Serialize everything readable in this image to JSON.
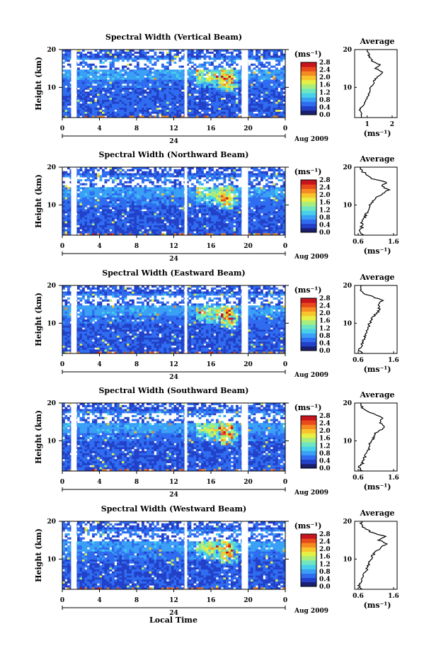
{
  "figure": {
    "xlabel": "Local Time",
    "date_label": "Aug 2009",
    "day_label": "24",
    "colorbar_unit": "(ms⁻¹)",
    "colorbar_ticks": [
      "2.8",
      "2.4",
      "2.0",
      "1.6",
      "1.2",
      "0.8",
      "0.4",
      "0.0"
    ],
    "avg_title": "Average",
    "avg_xlabel": "(ms⁻¹)",
    "ylabel": "Height (km)",
    "time_ticks": [
      "0",
      "4",
      "8",
      "12",
      "16",
      "20",
      "0"
    ],
    "height_ticks": [
      "20",
      "10"
    ],
    "colormap": [
      "#1a1f6e",
      "#2240c8",
      "#2f6cf0",
      "#3aa0f5",
      "#48d0ea",
      "#70e6c0",
      "#a8ee7e",
      "#e6ef45",
      "#f8c42c",
      "#f58a22",
      "#e84a1c",
      "#c8141c"
    ]
  },
  "chart_data": [
    {
      "type": "heatmap",
      "title": "Spectral Width (Vertical Beam)",
      "xlim": [
        0,
        24
      ],
      "ylim": [
        2,
        20
      ],
      "clim": [
        0.0,
        2.8
      ],
      "avg_ticks": [
        "1",
        "2"
      ],
      "avg_xlim": [
        0.5,
        2.2
      ],
      "avg_profile": {
        "height": [
          2,
          3,
          4,
          5,
          6,
          7,
          8,
          9,
          10,
          11,
          12,
          13,
          14,
          15,
          16,
          17,
          18,
          19,
          20
        ],
        "value": [
          0.75,
          0.8,
          0.7,
          0.8,
          0.9,
          1.0,
          1.05,
          1.1,
          1.15,
          1.25,
          1.3,
          1.45,
          1.6,
          1.35,
          1.5,
          1.2,
          1.1,
          1.05,
          1.0
        ]
      }
    },
    {
      "type": "heatmap",
      "title": "Spectral Width (Northward Beam)",
      "xlim": [
        0,
        24
      ],
      "ylim": [
        2,
        20
      ],
      "clim": [
        0.0,
        2.8
      ],
      "avg_ticks": [
        "0.6",
        "1.6"
      ],
      "avg_xlim": [
        0.5,
        1.7
      ],
      "avg_profile": {
        "height": [
          2,
          3,
          4,
          5,
          6,
          7,
          8,
          9,
          10,
          11,
          12,
          13,
          14,
          15,
          16,
          17,
          18,
          19,
          20
        ],
        "value": [
          0.75,
          0.65,
          0.7,
          0.7,
          0.75,
          0.8,
          0.85,
          0.9,
          0.95,
          1.0,
          1.1,
          1.3,
          1.45,
          1.25,
          1.4,
          1.0,
          0.85,
          0.7,
          0.65
        ]
      }
    },
    {
      "type": "heatmap",
      "title": "Spectral Width (Eastward Beam)",
      "xlim": [
        0,
        24
      ],
      "ylim": [
        2,
        20
      ],
      "clim": [
        0.0,
        2.8
      ],
      "avg_ticks": [
        "0.6",
        "1.6"
      ],
      "avg_xlim": [
        0.5,
        1.7
      ],
      "avg_profile": {
        "height": [
          2,
          3,
          4,
          5,
          6,
          7,
          8,
          9,
          10,
          11,
          12,
          13,
          14,
          15,
          16,
          17,
          18,
          19,
          20
        ],
        "value": [
          0.7,
          0.6,
          0.7,
          0.72,
          0.78,
          0.82,
          0.85,
          0.88,
          0.92,
          0.98,
          1.05,
          1.15,
          1.2,
          1.15,
          1.3,
          1.0,
          0.75,
          0.65,
          0.7
        ]
      }
    },
    {
      "type": "heatmap",
      "title": "Spectral Width (Southward Beam)",
      "xlim": [
        0,
        24
      ],
      "ylim": [
        2,
        20
      ],
      "clim": [
        0.0,
        2.8
      ],
      "avg_ticks": [
        "0.6",
        "1.6"
      ],
      "avg_xlim": [
        0.5,
        1.7
      ],
      "avg_profile": {
        "height": [
          2,
          3,
          4,
          5,
          6,
          7,
          8,
          9,
          10,
          11,
          12,
          13,
          14,
          15,
          16,
          17,
          18,
          19,
          20
        ],
        "value": [
          0.7,
          0.62,
          0.72,
          0.75,
          0.8,
          0.85,
          0.9,
          0.92,
          0.98,
          1.05,
          1.1,
          1.25,
          1.35,
          1.2,
          1.3,
          1.05,
          0.8,
          0.7,
          0.68
        ]
      }
    },
    {
      "type": "heatmap",
      "title": "Spectral Width (Westward Beam)",
      "xlim": [
        0,
        24
      ],
      "ylim": [
        2,
        20
      ],
      "clim": [
        0.0,
        2.8
      ],
      "avg_ticks": [
        "0.6",
        "1.6"
      ],
      "avg_xlim": [
        0.5,
        1.7
      ],
      "avg_profile": {
        "height": [
          2,
          3,
          4,
          5,
          6,
          7,
          8,
          9,
          10,
          11,
          12,
          13,
          14,
          15,
          16,
          17,
          18,
          19,
          20
        ],
        "value": [
          0.72,
          0.62,
          0.7,
          0.72,
          0.78,
          0.82,
          0.87,
          0.9,
          0.95,
          1.02,
          1.1,
          1.25,
          1.4,
          1.2,
          1.35,
          1.0,
          0.8,
          0.68,
          0.7
        ]
      }
    }
  ]
}
